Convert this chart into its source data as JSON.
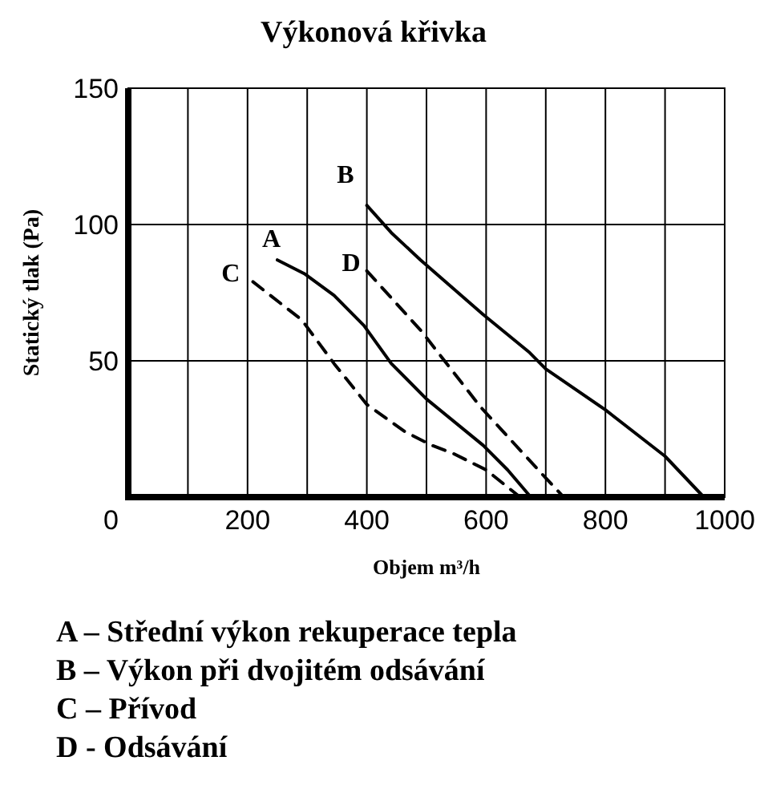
{
  "chart_data": {
    "type": "line",
    "title": "Výkonová křivka",
    "xlabel": "Objem m³/h",
    "ylabel": "Statický  tlak (Pa)",
    "xlim": [
      0,
      1000
    ],
    "ylim": [
      0,
      150
    ],
    "xticks": [
      {
        "value": 0,
        "label": null
      },
      {
        "value": 100,
        "label": null
      },
      200,
      {
        "value": 300,
        "label": null
      },
      400,
      {
        "value": 500,
        "label": null
      },
      600,
      {
        "value": 700,
        "label": null
      },
      800,
      {
        "value": 900,
        "label": null
      },
      1000
    ],
    "yticks": [
      0,
      50,
      100,
      150
    ],
    "grid": true,
    "marker": "none",
    "series": [
      {
        "name": "A",
        "color": "#000000",
        "line_style": "solid",
        "x": [
          250,
          295,
          345,
          395,
          441,
          500,
          595,
          636,
          675
        ],
        "values": [
          87,
          82,
          74,
          63,
          49,
          36,
          19,
          10,
          0
        ]
      },
      {
        "name": "B",
        "color": "#000000",
        "line_style": "solid",
        "x": [
          400,
          441,
          490,
          595,
          673,
          700,
          800,
          900,
          965
        ],
        "values": [
          107,
          97,
          87,
          67,
          53,
          47,
          32,
          15,
          0
        ]
      },
      {
        "name": "C",
        "color": "#000000",
        "line_style": "dashed",
        "x": [
          209,
          291,
          345,
          400,
          464,
          509,
          545,
          600,
          657
        ],
        "values": [
          79,
          65,
          49,
          34,
          24,
          19,
          16,
          10,
          0
        ]
      },
      {
        "name": "D",
        "color": "#000000",
        "line_style": "dashed",
        "x": [
          400,
          491,
          591,
          700,
          730
        ],
        "values": [
          83,
          61,
          33,
          7,
          0
        ]
      }
    ],
    "annotations": [
      "A – Střední výkon rekuperace tepla",
      "B – Výkon při dvojitém odsávání",
      "C – Přívod",
      "D - Odsávání"
    ]
  }
}
